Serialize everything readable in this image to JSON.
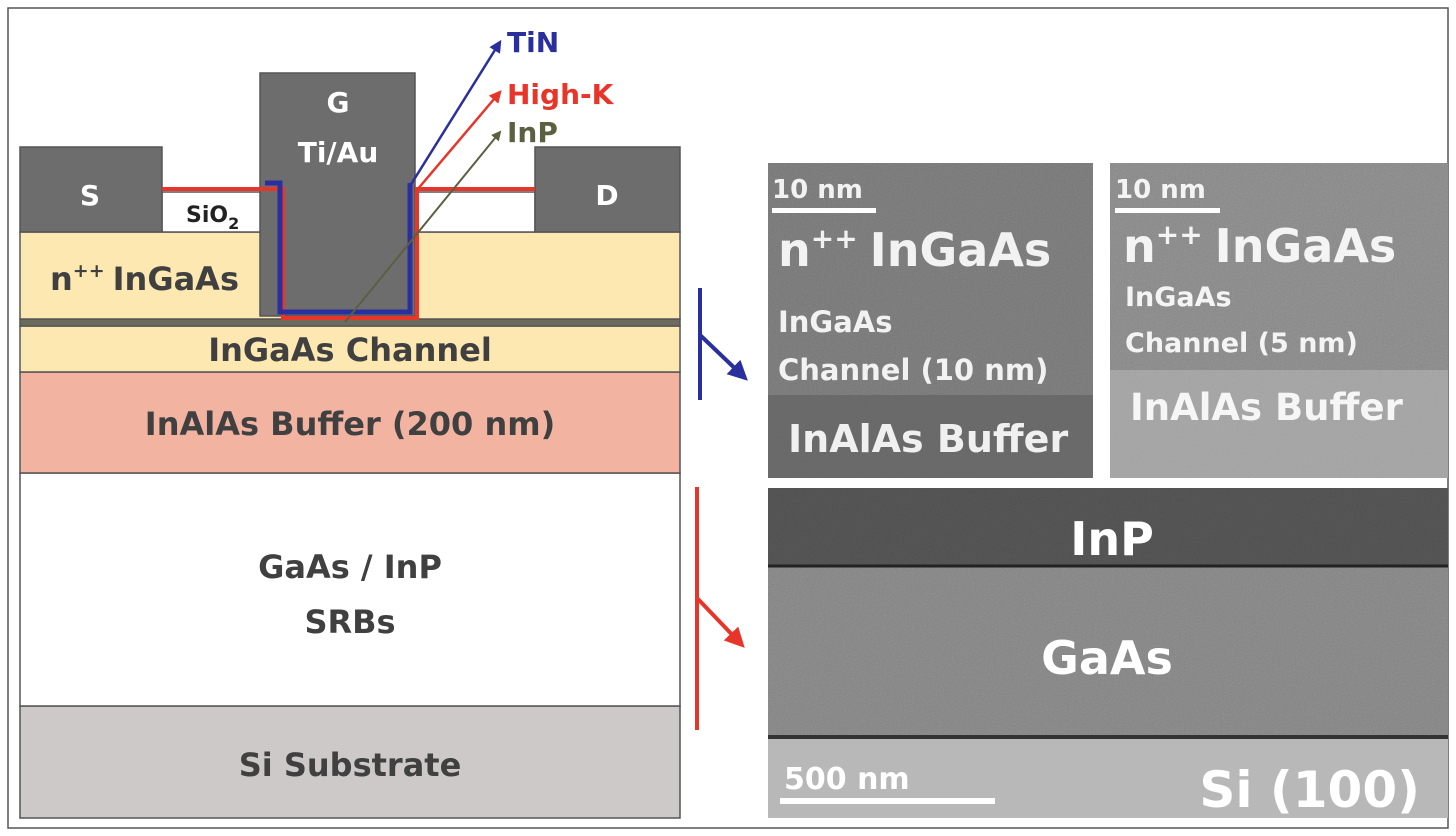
{
  "schematic": {
    "gate": {
      "label": "G",
      "metal": "Ti/Au"
    },
    "source": "S",
    "drain": "D",
    "oxide": {
      "base": "SiO",
      "sub": "2"
    },
    "contact": {
      "base": "n",
      "sup": "++",
      "rest": "InGaAs"
    },
    "channel": "InGaAs Channel",
    "buffer": "InAlAs Buffer (200 nm)",
    "srb": [
      "GaAs / InP",
      "SRBs"
    ],
    "substrate": "Si Substrate",
    "callouts": [
      "TiN",
      "High-K",
      "InP"
    ]
  },
  "tem": [
    {
      "scale_bar": "10 nm",
      "contact": {
        "base": "n",
        "sup": "++",
        "rest": "InGaAs"
      },
      "channel": [
        "InGaAs",
        "Channel (10 nm)"
      ],
      "buffer": "InAlAs Buffer"
    },
    {
      "scale_bar": "10 nm",
      "contact": {
        "base": "n",
        "sup": "++",
        "rest": "InGaAs"
      },
      "channel": [
        "InGaAs",
        "Channel (5 nm)"
      ],
      "buffer": "InAlAs Buffer"
    },
    {
      "layers": [
        "InP",
        "GaAs"
      ],
      "scale_bar": "500 nm",
      "substrate": "Si (100)"
    }
  ]
}
